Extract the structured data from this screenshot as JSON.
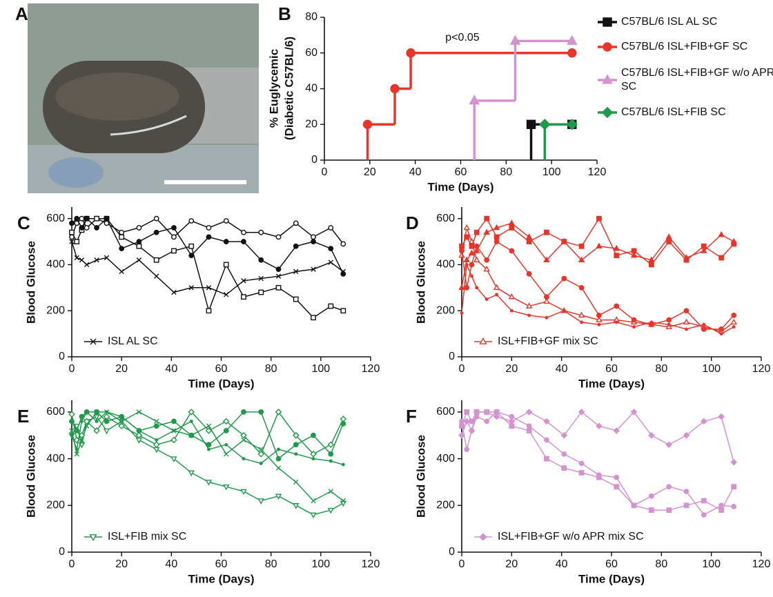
{
  "panel_a": {
    "label": "A"
  },
  "chart_data": [
    {
      "type": "step",
      "label": "B",
      "xlabel": "Time (Days)",
      "ylabel": [
        "% Euglycemic",
        "(Diabetic C57BL/6)"
      ],
      "annotation": "p<0.05",
      "xlim": [
        0,
        120
      ],
      "ylim": [
        0,
        80
      ],
      "xticks": [
        0,
        20,
        40,
        60,
        80,
        100,
        120
      ],
      "yticks": [
        0,
        20,
        40,
        60,
        80
      ],
      "series": [
        {
          "name": "C57BL/6 ISL AL SC",
          "color": "#111111",
          "marker": "square",
          "x": [
            91,
            109
          ],
          "values": [
            20,
            20
          ]
        },
        {
          "name": "C57BL/6 ISL+FIB+GF SC",
          "color": "#e8352a",
          "marker": "circle",
          "x": [
            19,
            31,
            38,
            109
          ],
          "values": [
            20,
            40,
            60,
            60
          ]
        },
        {
          "name": "C57BL/6 ISL+FIB+GF w/o APR SC",
          "color": "#d592d0",
          "marker": "triangle",
          "x": [
            66,
            84,
            109
          ],
          "values": [
            33.3,
            66.7,
            66.7
          ]
        },
        {
          "name": "C57BL/6 ISL+FIB SC",
          "color": "#1f9a4a",
          "marker": "diamond",
          "x": [
            97,
            109
          ],
          "values": [
            20,
            20
          ]
        }
      ]
    },
    {
      "type": "line",
      "label": "C",
      "xlabel": "Time (Days)",
      "ylabel": "Blood Glucose",
      "legend": "ISL AL SC",
      "color": "#111111",
      "xlim": [
        0,
        120
      ],
      "ylim": [
        0,
        650
      ],
      "xticks": [
        0,
        20,
        40,
        60,
        80,
        100,
        120
      ],
      "yticks": [
        0,
        200,
        400,
        600
      ],
      "x": [
        0,
        2,
        4,
        6,
        10,
        14,
        20,
        27,
        34,
        41,
        48,
        55,
        62,
        69,
        76,
        83,
        90,
        97,
        104,
        109
      ],
      "series": [
        {
          "marker": "x",
          "values": [
            500,
            430,
            420,
            400,
            420,
            430,
            370,
            420,
            350,
            280,
            300,
            300,
            270,
            330,
            340,
            350,
            370,
            380,
            410,
            370
          ]
        },
        {
          "marker": "circle-open",
          "values": [
            520,
            580,
            600,
            560,
            600,
            580,
            540,
            560,
            600,
            520,
            590,
            560,
            590,
            540,
            540,
            520,
            580,
            520,
            560,
            490
          ]
        },
        {
          "marker": "square-open",
          "values": [
            540,
            500,
            550,
            600,
            600,
            600,
            520,
            480,
            420,
            460,
            480,
            200,
            400,
            260,
            280,
            300,
            250,
            170,
            220,
            200
          ]
        },
        {
          "marker": "circle",
          "values": [
            580,
            600,
            560,
            600,
            560,
            600,
            470,
            500,
            540,
            560,
            440,
            520,
            500,
            500,
            420,
            380,
            480,
            500,
            470,
            360
          ]
        }
      ]
    },
    {
      "type": "line",
      "label": "D",
      "xlabel": "Time (Days)",
      "ylabel": "Blood Glucose",
      "legend": "ISL+FIB+GF mix SC",
      "color": "#e8352a",
      "xlim": [
        0,
        120
      ],
      "ylim": [
        0,
        650
      ],
      "xticks": [
        0,
        20,
        40,
        60,
        80,
        100,
        120
      ],
      "yticks": [
        0,
        200,
        400,
        600
      ],
      "x": [
        0,
        2,
        4,
        6,
        10,
        14,
        20,
        27,
        34,
        41,
        48,
        55,
        62,
        69,
        76,
        83,
        90,
        97,
        104,
        109
      ],
      "series": [
        {
          "marker": "triangle-open",
          "values": [
            440,
            560,
            500,
            420,
            380,
            300,
            260,
            220,
            240,
            200,
            180,
            160,
            160,
            150,
            140,
            130,
            150,
            130,
            110,
            150
          ]
        },
        {
          "marker": "square",
          "values": [
            480,
            520,
            480,
            540,
            600,
            520,
            560,
            500,
            540,
            500,
            480,
            600,
            440,
            460,
            400,
            500,
            420,
            480,
            430,
            490
          ]
        },
        {
          "marker": "circle",
          "values": [
            460,
            300,
            400,
            480,
            420,
            500,
            460,
            360,
            260,
            340,
            300,
            180,
            220,
            160,
            140,
            160,
            200,
            120,
            120,
            180
          ]
        },
        {
          "marker": "triangle",
          "values": [
            300,
            420,
            450,
            460,
            540,
            560,
            580,
            520,
            420,
            500,
            420,
            480,
            470,
            440,
            420,
            520,
            430,
            460,
            530,
            500
          ]
        },
        {
          "marker": "dot",
          "values": [
            190,
            400,
            350,
            300,
            250,
            270,
            200,
            180,
            170,
            200,
            150,
            140,
            150,
            130,
            150,
            140,
            120,
            140,
            100,
            130
          ]
        }
      ]
    },
    {
      "type": "line",
      "label": "E",
      "xlabel": "Time (Days)",
      "ylabel": "Blood Glucose",
      "legend": "ISL+FIB mix SC",
      "color": "#1f9a4a",
      "xlim": [
        0,
        120
      ],
      "ylim": [
        0,
        650
      ],
      "xticks": [
        0,
        20,
        40,
        60,
        80,
        100,
        120
      ],
      "yticks": [
        0,
        200,
        400,
        600
      ],
      "x": [
        0,
        2,
        4,
        6,
        10,
        14,
        20,
        27,
        34,
        41,
        48,
        55,
        62,
        69,
        76,
        83,
        90,
        97,
        104,
        109
      ],
      "series": [
        {
          "marker": "triangle-down-open",
          "values": [
            500,
            540,
            460,
            560,
            580,
            520,
            560,
            480,
            440,
            400,
            340,
            300,
            280,
            260,
            220,
            240,
            200,
            160,
            180,
            210
          ]
        },
        {
          "marker": "circle",
          "values": [
            560,
            520,
            580,
            600,
            600,
            560,
            580,
            520,
            540,
            560,
            500,
            460,
            520,
            600,
            600,
            400,
            460,
            500,
            420,
            550
          ]
        },
        {
          "marker": "x",
          "values": [
            520,
            420,
            480,
            540,
            600,
            600,
            560,
            600,
            560,
            520,
            500,
            540,
            420,
            480,
            440,
            360,
            300,
            220,
            260,
            220
          ]
        },
        {
          "marker": "diamond-open",
          "values": [
            590,
            480,
            500,
            560,
            520,
            580,
            540,
            500,
            460,
            480,
            600,
            520,
            560,
            500,
            420,
            600,
            500,
            420,
            460,
            570
          ]
        },
        {
          "marker": "dot",
          "values": [
            500,
            440,
            560,
            600,
            560,
            600,
            580,
            520,
            480,
            520,
            560,
            440,
            460,
            400,
            380,
            440,
            420,
            400,
            390,
            375
          ]
        }
      ]
    },
    {
      "type": "line",
      "label": "F",
      "xlabel": "Time (Days)",
      "ylabel": "Blood Glucose",
      "legend": "ISL+FIB+GF w/o APR mix SC",
      "color": "#d592d0",
      "xlim": [
        0,
        120
      ],
      "ylim": [
        0,
        650
      ],
      "xticks": [
        0,
        20,
        40,
        60,
        80,
        100,
        120
      ],
      "yticks": [
        0,
        200,
        400,
        600
      ],
      "x": [
        0,
        2,
        4,
        6,
        10,
        14,
        20,
        27,
        34,
        41,
        48,
        55,
        62,
        69,
        76,
        83,
        90,
        97,
        104,
        109
      ],
      "series": [
        {
          "marker": "diamond",
          "values": [
            500,
            560,
            520,
            600,
            600,
            580,
            560,
            600,
            560,
            500,
            600,
            540,
            520,
            600,
            500,
            460,
            500,
            560,
            580,
            385
          ]
        },
        {
          "marker": "square",
          "values": [
            540,
            600,
            560,
            600,
            600,
            600,
            540,
            520,
            400,
            360,
            340,
            320,
            280,
            200,
            180,
            180,
            200,
            220,
            180,
            280
          ]
        },
        {
          "marker": "circle",
          "values": [
            560,
            440,
            520,
            580,
            560,
            600,
            580,
            540,
            480,
            420,
            380,
            330,
            320,
            200,
            240,
            280,
            260,
            160,
            200,
            195
          ]
        }
      ]
    }
  ]
}
